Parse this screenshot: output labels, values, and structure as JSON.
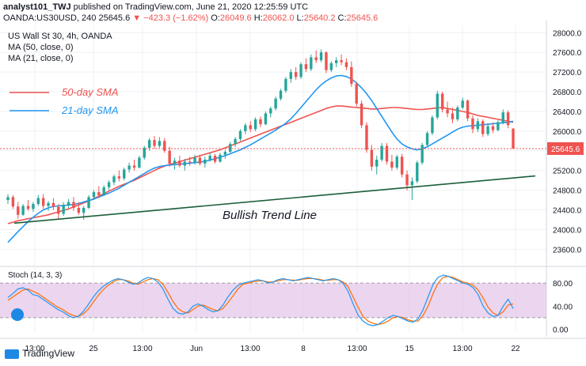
{
  "header": {
    "line1_author": "analyst101_TWJ",
    "line1_published": "published on TradingView.com, June 21, 2020 12:25:59 UTC",
    "line2_symbol": "OANDA:US30USD, 240",
    "line2_price": "25645.6",
    "line2_change": "▼ −423.3 (−1.62%)",
    "o_label": "O:",
    "o_value": "26049.6",
    "h_label": "H:",
    "h_value": "26062.0",
    "l_label": "L:",
    "l_value": "25640.2",
    "c_label": "C:",
    "c_value": "25645.6"
  },
  "legend": {
    "title": "US Wall St 30, 4h, OANDA",
    "ma50": "MA (50, close, 0)",
    "ma21": "MA (21, close, 0)"
  },
  "annotations": {
    "sma50": "50-day SMA",
    "sma21": "21-day SMA",
    "trend": "Bullish Trend Line"
  },
  "stoch_label": "Stoch (14, 3, 3)",
  "branding": "TradingView",
  "colors": {
    "up": "#26a69a",
    "down": "#ef5350",
    "ma50": "#ef5350",
    "ma21": "#2196f3",
    "trend": "#1b5e3a",
    "stoch_k": "#2196f3",
    "stoch_d": "#ff6d00",
    "stoch_band": "#e1bee7",
    "price_tag": "#ef5350"
  },
  "chart_data": [
    {
      "type": "candlestick",
      "title": "US Wall St 30, 4h, OANDA",
      "ylim": [
        23300,
        28150
      ],
      "y_ticks": [
        23600,
        24000,
        24400,
        24800,
        25200,
        25600,
        26000,
        26400,
        26800,
        27200,
        27600,
        28000
      ],
      "y_tick_labels": [
        "23600.0",
        "24000.0",
        "24400.0",
        "24800.0",
        "25200.0",
        "25600.0",
        "26000.0",
        "26400.0",
        "26800.0",
        "27200.0",
        "27600.0",
        "28000.0"
      ],
      "x_tick_labels": [
        "13:00",
        "25",
        "13:00",
        "Jun",
        "13:00",
        "8",
        "13:00",
        "15",
        "13:00",
        "22"
      ],
      "last_price_label": "25645.6",
      "candles": [
        {
          "o": 24600,
          "h": 24720,
          "l": 24520,
          "c": 24660
        },
        {
          "o": 24660,
          "h": 24700,
          "l": 24420,
          "c": 24470
        },
        {
          "o": 24470,
          "h": 24560,
          "l": 24220,
          "c": 24300
        },
        {
          "o": 24300,
          "h": 24520,
          "l": 24280,
          "c": 24480
        },
        {
          "o": 24480,
          "h": 24600,
          "l": 24380,
          "c": 24420
        },
        {
          "o": 24420,
          "h": 24560,
          "l": 24360,
          "c": 24520
        },
        {
          "o": 24520,
          "h": 24700,
          "l": 24480,
          "c": 24640
        },
        {
          "o": 24640,
          "h": 24720,
          "l": 24420,
          "c": 24480
        },
        {
          "o": 24480,
          "h": 24580,
          "l": 24380,
          "c": 24540
        },
        {
          "o": 24540,
          "h": 24640,
          "l": 24400,
          "c": 24460
        },
        {
          "o": 24460,
          "h": 24520,
          "l": 24200,
          "c": 24320
        },
        {
          "o": 24320,
          "h": 24560,
          "l": 24280,
          "c": 24500
        },
        {
          "o": 24500,
          "h": 24620,
          "l": 24440,
          "c": 24560
        },
        {
          "o": 24560,
          "h": 24660,
          "l": 24380,
          "c": 24440
        },
        {
          "o": 24440,
          "h": 24560,
          "l": 24300,
          "c": 24340
        },
        {
          "o": 24340,
          "h": 24480,
          "l": 24200,
          "c": 24440
        },
        {
          "o": 24440,
          "h": 24700,
          "l": 24420,
          "c": 24660
        },
        {
          "o": 24660,
          "h": 24800,
          "l": 24600,
          "c": 24760
        },
        {
          "o": 24760,
          "h": 24880,
          "l": 24640,
          "c": 24700
        },
        {
          "o": 24700,
          "h": 24900,
          "l": 24680,
          "c": 24860
        },
        {
          "o": 24860,
          "h": 25000,
          "l": 24800,
          "c": 24960
        },
        {
          "o": 24960,
          "h": 25120,
          "l": 24900,
          "c": 25080
        },
        {
          "o": 25080,
          "h": 25200,
          "l": 24980,
          "c": 25040
        },
        {
          "o": 25040,
          "h": 25260,
          "l": 25000,
          "c": 25220
        },
        {
          "o": 25220,
          "h": 25360,
          "l": 25160,
          "c": 25300
        },
        {
          "o": 25300,
          "h": 25420,
          "l": 25200,
          "c": 25260
        },
        {
          "o": 25260,
          "h": 25500,
          "l": 25240,
          "c": 25460
        },
        {
          "o": 25460,
          "h": 25700,
          "l": 25420,
          "c": 25660
        },
        {
          "o": 25660,
          "h": 25860,
          "l": 25600,
          "c": 25820
        },
        {
          "o": 25820,
          "h": 25900,
          "l": 25640,
          "c": 25700
        },
        {
          "o": 25700,
          "h": 25880,
          "l": 25660,
          "c": 25800
        },
        {
          "o": 25800,
          "h": 25860,
          "l": 25560,
          "c": 25600
        },
        {
          "o": 25600,
          "h": 25680,
          "l": 25280,
          "c": 25340
        },
        {
          "o": 25340,
          "h": 25460,
          "l": 25220,
          "c": 25400
        },
        {
          "o": 25400,
          "h": 25500,
          "l": 25260,
          "c": 25300
        },
        {
          "o": 25300,
          "h": 25440,
          "l": 25200,
          "c": 25380
        },
        {
          "o": 25380,
          "h": 25480,
          "l": 25300,
          "c": 25360
        },
        {
          "o": 25360,
          "h": 25520,
          "l": 25320,
          "c": 25460
        },
        {
          "o": 25460,
          "h": 25520,
          "l": 25300,
          "c": 25340
        },
        {
          "o": 25340,
          "h": 25480,
          "l": 25260,
          "c": 25420
        },
        {
          "o": 25420,
          "h": 25560,
          "l": 25380,
          "c": 25500
        },
        {
          "o": 25500,
          "h": 25540,
          "l": 25340,
          "c": 25380
        },
        {
          "o": 25380,
          "h": 25560,
          "l": 25360,
          "c": 25520
        },
        {
          "o": 25520,
          "h": 25620,
          "l": 25440,
          "c": 25580
        },
        {
          "o": 25580,
          "h": 25780,
          "l": 25560,
          "c": 25740
        },
        {
          "o": 25740,
          "h": 25880,
          "l": 25680,
          "c": 25840
        },
        {
          "o": 25840,
          "h": 26040,
          "l": 25800,
          "c": 26000
        },
        {
          "o": 26000,
          "h": 26160,
          "l": 25940,
          "c": 26120
        },
        {
          "o": 26120,
          "h": 26200,
          "l": 25980,
          "c": 26040
        },
        {
          "o": 26040,
          "h": 26280,
          "l": 26000,
          "c": 26240
        },
        {
          "o": 26240,
          "h": 26300,
          "l": 26080,
          "c": 26140
        },
        {
          "o": 26140,
          "h": 26400,
          "l": 26120,
          "c": 26360
        },
        {
          "o": 26360,
          "h": 26500,
          "l": 26280,
          "c": 26460
        },
        {
          "o": 26460,
          "h": 26700,
          "l": 26420,
          "c": 26660
        },
        {
          "o": 26660,
          "h": 26860,
          "l": 26620,
          "c": 26820
        },
        {
          "o": 26820,
          "h": 27100,
          "l": 26780,
          "c": 27060
        },
        {
          "o": 27060,
          "h": 27260,
          "l": 26980,
          "c": 27200
        },
        {
          "o": 27200,
          "h": 27300,
          "l": 27040,
          "c": 27100
        },
        {
          "o": 27100,
          "h": 27400,
          "l": 27060,
          "c": 27360
        },
        {
          "o": 27360,
          "h": 27480,
          "l": 27200,
          "c": 27260
        },
        {
          "o": 27260,
          "h": 27560,
          "l": 27220,
          "c": 27500
        },
        {
          "o": 27500,
          "h": 27640,
          "l": 27380,
          "c": 27440
        },
        {
          "o": 27440,
          "h": 27660,
          "l": 27400,
          "c": 27600
        },
        {
          "o": 27600,
          "h": 27620,
          "l": 27180,
          "c": 27240
        },
        {
          "o": 27240,
          "h": 27420,
          "l": 27200,
          "c": 27380
        },
        {
          "o": 27380,
          "h": 27500,
          "l": 27300,
          "c": 27440
        },
        {
          "o": 27440,
          "h": 27560,
          "l": 27340,
          "c": 27400
        },
        {
          "o": 27400,
          "h": 27480,
          "l": 27240,
          "c": 27300
        },
        {
          "o": 27300,
          "h": 27420,
          "l": 26900,
          "c": 26960
        },
        {
          "o": 26960,
          "h": 27000,
          "l": 26500,
          "c": 26560
        },
        {
          "o": 26560,
          "h": 26620,
          "l": 26060,
          "c": 26120
        },
        {
          "o": 26120,
          "h": 26180,
          "l": 25560,
          "c": 25620
        },
        {
          "o": 25620,
          "h": 25720,
          "l": 25200,
          "c": 25280
        },
        {
          "o": 25280,
          "h": 25500,
          "l": 25120,
          "c": 25420
        },
        {
          "o": 25420,
          "h": 25760,
          "l": 25380,
          "c": 25700
        },
        {
          "o": 25700,
          "h": 25760,
          "l": 25320,
          "c": 25380
        },
        {
          "o": 25380,
          "h": 25520,
          "l": 25200,
          "c": 25260
        },
        {
          "o": 25260,
          "h": 25520,
          "l": 25220,
          "c": 25480
        },
        {
          "o": 25480,
          "h": 25540,
          "l": 25060,
          "c": 25120
        },
        {
          "o": 25120,
          "h": 25200,
          "l": 24800,
          "c": 24900
        },
        {
          "o": 24900,
          "h": 25060,
          "l": 24600,
          "c": 24980
        },
        {
          "o": 24980,
          "h": 25400,
          "l": 24940,
          "c": 25360
        },
        {
          "o": 25360,
          "h": 25760,
          "l": 25320,
          "c": 25720
        },
        {
          "o": 25720,
          "h": 26000,
          "l": 25680,
          "c": 25960
        },
        {
          "o": 25960,
          "h": 26320,
          "l": 25920,
          "c": 26280
        },
        {
          "o": 26280,
          "h": 26820,
          "l": 26240,
          "c": 26760
        },
        {
          "o": 26760,
          "h": 26800,
          "l": 26380,
          "c": 26440
        },
        {
          "o": 26440,
          "h": 26600,
          "l": 26280,
          "c": 26360
        },
        {
          "o": 26360,
          "h": 26480,
          "l": 26160,
          "c": 26240
        },
        {
          "o": 26240,
          "h": 26520,
          "l": 26200,
          "c": 26480
        },
        {
          "o": 26480,
          "h": 26680,
          "l": 26440,
          "c": 26620
        },
        {
          "o": 26620,
          "h": 26640,
          "l": 26200,
          "c": 26260
        },
        {
          "o": 26260,
          "h": 26320,
          "l": 25960,
          "c": 26040
        },
        {
          "o": 26040,
          "h": 26260,
          "l": 25980,
          "c": 26200
        },
        {
          "o": 26200,
          "h": 26240,
          "l": 25880,
          "c": 25940
        },
        {
          "o": 25940,
          "h": 26160,
          "l": 25900,
          "c": 26100
        },
        {
          "o": 26100,
          "h": 26180,
          "l": 25960,
          "c": 26020
        },
        {
          "o": 26020,
          "h": 26220,
          "l": 26000,
          "c": 26180
        },
        {
          "o": 26180,
          "h": 26440,
          "l": 26140,
          "c": 26380
        },
        {
          "o": 26380,
          "h": 26420,
          "l": 26060,
          "c": 26120
        },
        {
          "o": 26049.6,
          "h": 26062.0,
          "l": 25640.2,
          "c": 25645.6
        }
      ],
      "ma50": [
        24120,
        24150,
        24180,
        24200,
        24220,
        24240,
        24260,
        24280,
        24300,
        24330,
        24360,
        24390,
        24420,
        24460,
        24500,
        24540,
        24580,
        24630,
        24680,
        24730,
        24780,
        24830,
        24880,
        24920,
        24960,
        25000,
        25050,
        25100,
        25150,
        25200,
        25250,
        25290,
        25320,
        25350,
        25380,
        25410,
        25440,
        25470,
        25500,
        25530,
        25560,
        25590,
        25620,
        25660,
        25700,
        25740,
        25780,
        25820,
        25860,
        25900,
        25940,
        25980,
        26020,
        26060,
        26100,
        26140,
        26180,
        26220,
        26260,
        26300,
        26340,
        26380,
        26420,
        26460,
        26490,
        26510,
        26510,
        26500,
        26490,
        26480,
        26470,
        26460,
        26450,
        26450,
        26460,
        26470,
        26480,
        26480,
        26470,
        26460,
        26450,
        26440,
        26440,
        26450,
        26460,
        26470,
        26480,
        26460,
        26440,
        26420,
        26400,
        26380,
        26350,
        26320,
        26300,
        26280,
        26260,
        26240,
        26220,
        26200,
        26180
      ],
      "ma21": [
        23740,
        23850,
        23960,
        24060,
        24160,
        24250,
        24330,
        24400,
        24440,
        24470,
        24480,
        24490,
        24500,
        24510,
        24530,
        24560,
        24590,
        24620,
        24660,
        24700,
        24740,
        24790,
        24840,
        24900,
        24960,
        25020,
        25080,
        25140,
        25200,
        25250,
        25280,
        25300,
        25310,
        25320,
        25330,
        25340,
        25350,
        25360,
        25370,
        25390,
        25410,
        25440,
        25470,
        25500,
        25540,
        25580,
        25620,
        25670,
        25720,
        25780,
        25840,
        25900,
        25960,
        26020,
        26090,
        26160,
        26250,
        26360,
        26480,
        26600,
        26720,
        26840,
        26940,
        27020,
        27080,
        27120,
        27130,
        27110,
        27060,
        26980,
        26880,
        26760,
        26620,
        26460,
        26300,
        26140,
        25980,
        25840,
        25740,
        25680,
        25640,
        25620,
        25640,
        25680,
        25740,
        25800,
        25860,
        25920,
        25980,
        26040,
        26080,
        26100,
        26110,
        26120,
        26130,
        26140,
        26150,
        26160,
        26170,
        26180,
        26200
      ],
      "trend_line": {
        "start": 24130,
        "end": 25090
      }
    },
    {
      "type": "line",
      "title": "Stoch (14, 3, 3)",
      "ylim": [
        -5,
        105
      ],
      "y_ticks": [
        0,
        20,
        40,
        60,
        80
      ],
      "y_tick_labels": [
        "0.00",
        "",
        "40.00",
        "",
        "80.00"
      ],
      "band": [
        20,
        80
      ],
      "series": [
        {
          "name": "%K",
          "values": [
            55,
            62,
            70,
            72,
            68,
            60,
            58,
            52,
            46,
            40,
            34,
            30,
            24,
            20,
            22,
            30,
            42,
            55,
            66,
            74,
            80,
            85,
            88,
            86,
            82,
            78,
            80,
            86,
            90,
            88,
            82,
            70,
            52,
            36,
            28,
            26,
            30,
            40,
            44,
            40,
            34,
            30,
            32,
            42,
            56,
            68,
            76,
            80,
            82,
            84,
            86,
            84,
            80,
            82,
            86,
            88,
            86,
            84,
            86,
            88,
            90,
            88,
            86,
            84,
            86,
            88,
            86,
            80,
            66,
            44,
            24,
            14,
            8,
            6,
            8,
            14,
            20,
            24,
            22,
            18,
            14,
            12,
            18,
            34,
            56,
            78,
            90,
            94,
            92,
            88,
            84,
            80,
            78,
            72,
            60,
            40,
            28,
            22,
            24,
            40,
            52,
            36
          ]
        },
        {
          "name": "%D",
          "values": [
            50,
            56,
            62,
            68,
            70,
            66,
            62,
            56,
            50,
            44,
            38,
            34,
            28,
            24,
            22,
            26,
            34,
            46,
            58,
            68,
            76,
            82,
            86,
            86,
            84,
            80,
            78,
            82,
            86,
            88,
            86,
            78,
            64,
            48,
            36,
            30,
            28,
            34,
            40,
            42,
            38,
            34,
            32,
            36,
            46,
            58,
            70,
            78,
            80,
            82,
            84,
            84,
            82,
            82,
            84,
            86,
            86,
            85,
            85,
            87,
            88,
            88,
            87,
            85,
            85,
            86,
            86,
            82,
            74,
            56,
            38,
            22,
            14,
            10,
            8,
            10,
            14,
            20,
            22,
            20,
            16,
            14,
            14,
            24,
            40,
            62,
            80,
            90,
            92,
            90,
            86,
            82,
            80,
            76,
            68,
            54,
            38,
            28,
            24,
            30,
            42,
            44
          ]
        }
      ]
    }
  ]
}
